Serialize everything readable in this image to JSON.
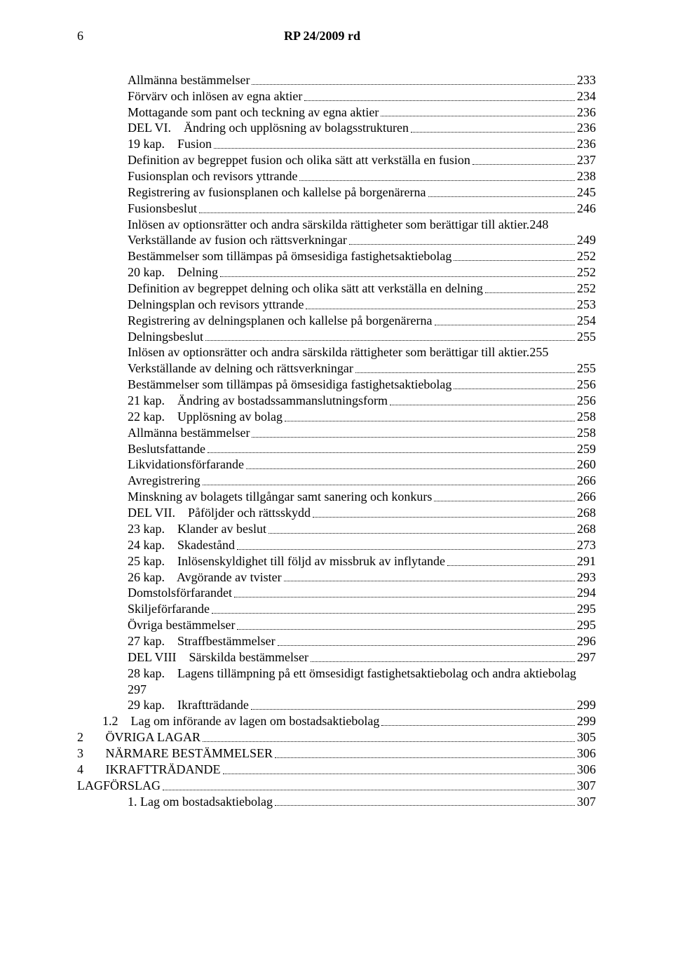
{
  "header": {
    "page_number": "6",
    "doc_title": "RP 24/2009 rd"
  },
  "toc": [
    {
      "indent": "i1",
      "label": "Allmänna bestämmelser",
      "page": "233"
    },
    {
      "indent": "i1",
      "label": "Förvärv och inlösen av egna aktier",
      "page": "234"
    },
    {
      "indent": "i1",
      "label": "Mottagande som pant och teckning av egna aktier",
      "page": "236"
    },
    {
      "indent": "i1",
      "label": "DEL VI.    Ändring och upplösning av bolagsstrukturen",
      "page": "236"
    },
    {
      "indent": "i1",
      "label": "19 kap.    Fusion",
      "page": "236"
    },
    {
      "indent": "i1",
      "label": "Definition av begreppet fusion och olika sätt att verkställa en fusion",
      "page": "237"
    },
    {
      "indent": "i1",
      "label": "Fusionsplan och revisors yttrande",
      "page": "238"
    },
    {
      "indent": "i1",
      "label": "Registrering av fusionsplanen och kallelse på borgenärerna",
      "page": "245"
    },
    {
      "indent": "i1",
      "label": "Fusionsbeslut",
      "page": "246"
    },
    {
      "indent": "i1",
      "label": "Inlösen av optionsrätter och andra särskilda rättigheter som berättigar till aktier.",
      "page": "248",
      "nodots": true
    },
    {
      "indent": "i1",
      "label": "Verkställande av fusion och rättsverkningar",
      "page": "249"
    },
    {
      "indent": "i1",
      "label": "Bestämmelser som tillämpas på ömsesidiga fastighetsaktiebolag",
      "page": "252"
    },
    {
      "indent": "i1",
      "label": "20 kap.    Delning",
      "page": "252"
    },
    {
      "indent": "i1",
      "label": "Definition av begreppet delning och olika sätt att verkställa en delning",
      "page": "252"
    },
    {
      "indent": "i1",
      "label": "Delningsplan och revisors yttrande",
      "page": "253"
    },
    {
      "indent": "i1",
      "label": "Registrering av delningsplanen och kallelse på borgenärerna",
      "page": "254"
    },
    {
      "indent": "i1",
      "label": "Delningsbeslut",
      "page": "255"
    },
    {
      "indent": "i1",
      "label": "Inlösen av optionsrätter och andra särskilda rättigheter som berättigar till aktier.",
      "page": "255",
      "nodots": true
    },
    {
      "indent": "i1",
      "label": "Verkställande av delning och rättsverkningar",
      "page": "255"
    },
    {
      "indent": "i1",
      "label": "Bestämmelser som tillämpas på ömsesidiga fastighetsaktiebolag",
      "page": "256"
    },
    {
      "indent": "i1",
      "label": "21 kap.    Ändring av bostadssammanslutningsform",
      "page": "256"
    },
    {
      "indent": "i1",
      "label": "22 kap.    Upplösning av bolag",
      "page": "258"
    },
    {
      "indent": "i1",
      "label": "Allmänna bestämmelser",
      "page": "258"
    },
    {
      "indent": "i1",
      "label": "Beslutsfattande",
      "page": "259"
    },
    {
      "indent": "i1",
      "label": "Likvidationsförfarande",
      "page": "260"
    },
    {
      "indent": "i1",
      "label": "Avregistrering",
      "page": "266"
    },
    {
      "indent": "i1",
      "label": "Minskning av bolagets tillgångar samt sanering och konkurs",
      "page": "266"
    },
    {
      "indent": "i1",
      "label": "DEL VII.    Påföljder och rättsskydd",
      "page": "268"
    },
    {
      "indent": "i1",
      "label": "23 kap.    Klander av beslut",
      "page": "268"
    },
    {
      "indent": "i1",
      "label": "24 kap.    Skadestånd",
      "page": "273"
    },
    {
      "indent": "i1",
      "label": "25 kap.    Inlösenskyldighet till följd av missbruk av inflytande",
      "page": "291"
    },
    {
      "indent": "i1",
      "label": "26 kap.    Avgörande av tvister",
      "page": "293"
    },
    {
      "indent": "i1",
      "label": "Domstolsförfarandet",
      "page": "294"
    },
    {
      "indent": "i1",
      "label": "Skiljeförfarande",
      "page": "295"
    },
    {
      "indent": "i1",
      "label": "Övriga bestämmelser",
      "page": "295"
    },
    {
      "indent": "i1",
      "label": "27 kap.    Straffbestämmelser",
      "page": "296"
    },
    {
      "indent": "i1",
      "label": "DEL VIII    Särskilda bestämmelser",
      "page": "297"
    },
    {
      "indent": "i1",
      "label": "28 kap.    Lagens tillämpning på ett ömsesidigt fastighetsaktiebolag och andra aktiebolag 297",
      "page": "",
      "nodots": true,
      "textonly": true
    },
    {
      "indent": "i1",
      "label": "29 kap.    Ikraftträdande",
      "page": "299"
    },
    {
      "indent": "i0",
      "label": "1.2    Lag om införande av lagen om bostadsaktiebolag",
      "page": "299"
    },
    {
      "indent": "iA",
      "label": "2       ÖVRIGA LAGAR",
      "page": "305"
    },
    {
      "indent": "iA",
      "label": "3       NÄRMARE BESTÄMMELSER",
      "page": "306"
    },
    {
      "indent": "iA",
      "label": "4       IKRAFTTRÄDANDE",
      "page": "306"
    },
    {
      "indent": "iA",
      "label": "LAGFÖRSLAG",
      "page": "307"
    },
    {
      "indent": "i1",
      "label": "1. Lag om bostadsaktiebolag",
      "page": "307"
    }
  ]
}
